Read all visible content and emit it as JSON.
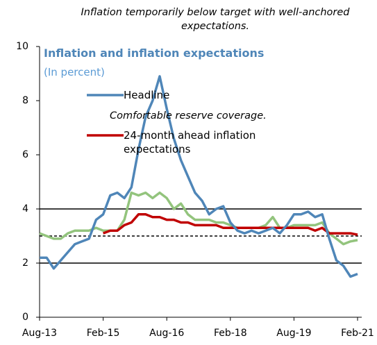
{
  "chart_data": {
    "type": "line",
    "title": "Inflation temporarily below target with well-anchored expectations.",
    "subtitle": "Inflation and inflation expectations",
    "y_label": "(In percent)",
    "annotation": "Comfortable reserve coverage.",
    "categories": [
      "Aug-13",
      null,
      null,
      null,
      null,
      null,
      null,
      null,
      null,
      "Feb-15",
      null,
      null,
      null,
      null,
      null,
      null,
      null,
      null,
      "Aug-16",
      null,
      null,
      null,
      null,
      null,
      null,
      null,
      null,
      "Feb-18",
      null,
      null,
      null,
      null,
      null,
      null,
      null,
      null,
      "Aug-19",
      null,
      null,
      null,
      null,
      null,
      null,
      null,
      null,
      "Feb-21"
    ],
    "series": [
      {
        "name": "Headline",
        "color": "#4f86b8",
        "values": [
          2.2,
          2.2,
          1.8,
          2.1,
          2.4,
          2.7,
          2.8,
          2.9,
          3.6,
          3.8,
          4.5,
          4.6,
          4.4,
          4.8,
          6.2,
          7.4,
          8.0,
          8.9,
          7.7,
          6.6,
          5.8,
          5.2,
          4.6,
          4.3,
          3.8,
          4.0,
          4.1,
          3.5,
          3.2,
          3.1,
          3.2,
          3.1,
          3.2,
          3.3,
          3.1,
          3.4,
          3.8,
          3.8,
          3.9,
          3.7,
          3.8,
          2.9,
          2.1,
          1.9,
          1.5,
          1.6
        ]
      },
      {
        "name": "24-month ahead inflation expectations",
        "color": "#c00000",
        "values": [
          null,
          null,
          null,
          null,
          null,
          null,
          null,
          null,
          null,
          3.1,
          3.2,
          3.2,
          3.4,
          3.5,
          3.8,
          3.8,
          3.7,
          3.7,
          3.6,
          3.6,
          3.5,
          3.5,
          3.4,
          3.4,
          3.4,
          3.4,
          3.3,
          3.3,
          3.3,
          3.3,
          3.3,
          3.3,
          3.3,
          3.3,
          3.3,
          3.3,
          3.3,
          3.3,
          3.3,
          3.2,
          3.3,
          3.1,
          3.1,
          3.1,
          3.1,
          3.05
        ]
      },
      {
        "color": "#93c47d",
        "values": [
          3.1,
          3.0,
          2.9,
          2.9,
          3.1,
          3.2,
          3.2,
          3.2,
          3.3,
          3.2,
          3.2,
          3.2,
          3.6,
          4.6,
          4.5,
          4.6,
          4.4,
          4.6,
          4.4,
          4.0,
          4.2,
          3.8,
          3.6,
          3.6,
          3.6,
          3.5,
          3.5,
          3.4,
          3.3,
          3.3,
          3.3,
          3.3,
          3.4,
          3.7,
          3.3,
          3.3,
          3.4,
          3.4,
          3.4,
          3.4,
          3.5,
          3.1,
          2.9,
          2.7,
          2.8,
          2.85
        ]
      }
    ],
    "reference_lines": [
      {
        "value": 4,
        "style": "solid"
      },
      {
        "value": 2,
        "style": "solid"
      },
      {
        "value": 3,
        "style": "dashed"
      }
    ],
    "ylim": [
      0,
      10
    ],
    "yticks": [
      0,
      2,
      4,
      6,
      8,
      10
    ]
  }
}
